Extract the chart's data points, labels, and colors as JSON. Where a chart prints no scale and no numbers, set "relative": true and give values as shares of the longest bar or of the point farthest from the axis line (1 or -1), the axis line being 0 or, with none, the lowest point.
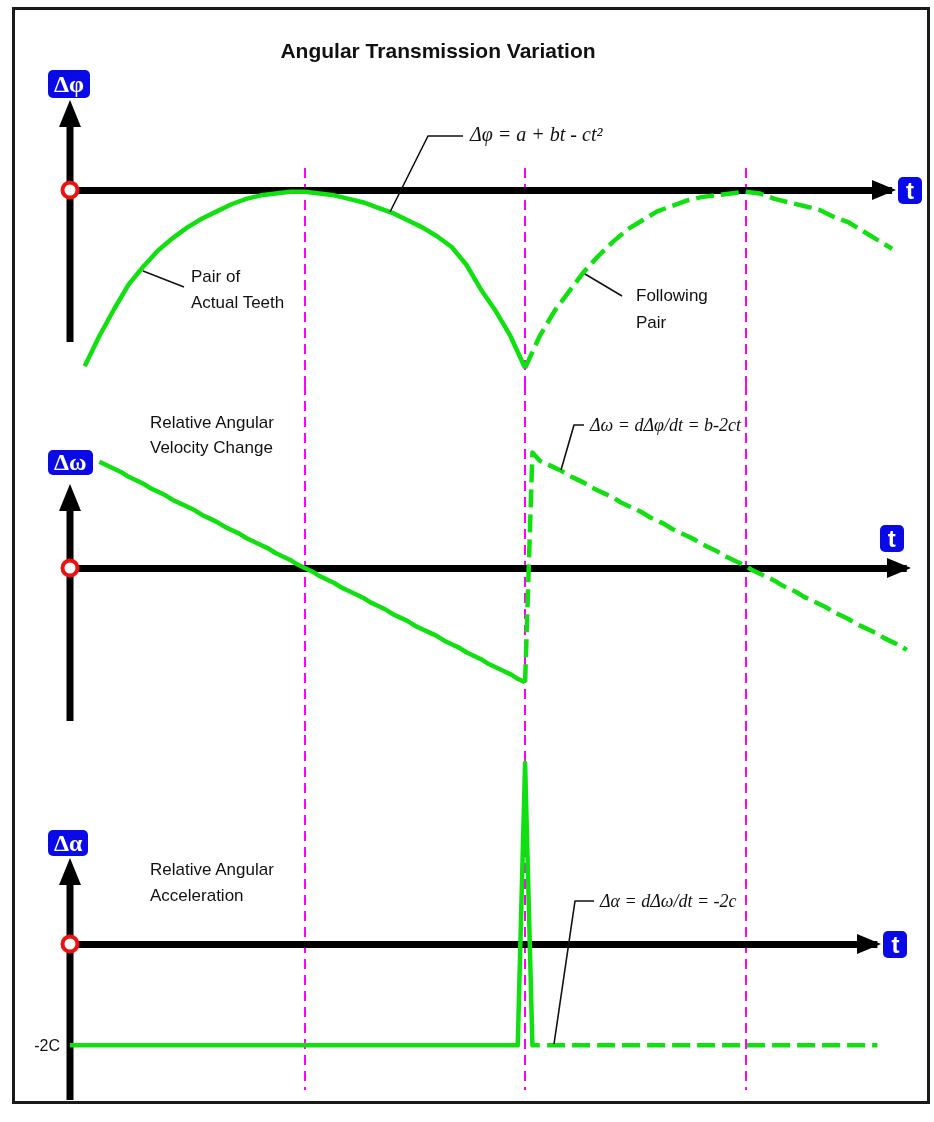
{
  "chart_data": [
    {
      "type": "line",
      "title": "Angular Transmission Variation",
      "xlabel": "t",
      "ylabel": "Δφ",
      "relative": true,
      "marker": "none",
      "tick_labels": false,
      "grid": "x",
      "categories": [
        null,
        null,
        null,
        null,
        null,
        null,
        null,
        null,
        null,
        null,
        null,
        null,
        null,
        null,
        null,
        null,
        null,
        null,
        null,
        null,
        null,
        null,
        null,
        null,
        null,
        null,
        null,
        null,
        null,
        null,
        null,
        null,
        null,
        null,
        null,
        null,
        null,
        null,
        null,
        null,
        null,
        null,
        null,
        null,
        null,
        null,
        null,
        null,
        null,
        null,
        null,
        null,
        null,
        null,
        null,
        null,
        null
      ],
      "series": [
        {
          "color": "#10e010",
          "line_style": "solid",
          "values": [
            null,
            -0.99,
            -0.82,
            -0.67,
            -0.53,
            -0.43,
            -0.34,
            -0.27,
            -0.21,
            -0.16,
            -0.12,
            -0.08,
            -0.05,
            -0.03,
            -0.02,
            -0.01,
            -0.01,
            -0.02,
            -0.03,
            -0.05,
            -0.07,
            -0.1,
            -0.13,
            -0.17,
            -0.21,
            -0.26,
            -0.32,
            -0.42,
            -0.56,
            -0.68,
            -0.82,
            -1,
            null,
            null,
            null,
            null,
            null,
            null,
            null,
            null,
            null,
            null,
            null,
            null,
            null,
            null,
            null,
            null,
            null,
            null,
            null,
            null,
            null,
            null,
            null,
            null,
            null
          ]
        },
        {
          "color": "#10e010",
          "line_style": "dashed",
          "values": [
            null,
            null,
            null,
            null,
            null,
            null,
            null,
            null,
            null,
            null,
            null,
            null,
            null,
            null,
            null,
            null,
            null,
            null,
            null,
            null,
            null,
            null,
            null,
            null,
            null,
            null,
            null,
            null,
            null,
            null,
            null,
            -1,
            -0.82,
            -0.68,
            -0.57,
            -0.46,
            -0.37,
            -0.29,
            -0.22,
            -0.17,
            -0.12,
            -0.09,
            -0.06,
            -0.04,
            -0.03,
            -0.02,
            -0.01,
            -0.02,
            -0.05,
            -0.07,
            -0.09,
            -0.11,
            -0.15,
            -0.18,
            -0.23,
            -0.28,
            -0.33
          ]
        }
      ],
      "annotations": [
        "Δφ = a + bt - ct²",
        "Pair of\nActual Teeth",
        "Following\nPair"
      ]
    },
    {
      "type": "line",
      "title": "Relative Angular\nVelocity Change",
      "xlabel": "t",
      "ylabel": "Δω",
      "relative": true,
      "marker": "none",
      "tick_labels": false,
      "grid": "x",
      "categories": [
        null,
        null,
        null,
        null,
        null,
        null,
        null,
        null,
        null,
        null,
        null,
        null,
        null,
        null,
        null,
        null,
        null,
        null,
        null,
        null,
        null,
        null,
        null,
        null,
        null,
        null,
        null,
        null,
        null,
        null,
        null,
        null,
        null,
        null,
        null,
        null,
        null,
        null,
        null,
        null,
        null,
        null,
        null,
        null,
        null,
        null,
        null,
        null,
        null,
        null,
        null,
        null,
        null,
        null,
        null,
        null,
        null,
        null,
        null,
        null,
        null,
        null,
        null,
        null,
        null,
        null,
        null,
        null,
        null,
        null,
        null,
        null,
        null,
        null,
        null,
        null,
        null,
        null,
        null,
        null,
        null,
        null,
        null,
        null,
        null,
        null,
        null,
        null,
        null,
        null,
        null,
        null,
        null,
        null,
        null,
        null,
        null,
        null,
        null,
        null,
        null,
        null,
        null,
        null,
        null,
        null,
        null,
        null,
        null,
        null,
        null,
        null,
        null,
        null,
        null
      ],
      "series": [
        {
          "color": "#10e010",
          "line_style": "solid",
          "values": [
            null,
            null,
            null,
            null,
            0.92,
            0.89,
            0.86,
            0.83,
            0.79,
            0.76,
            0.73,
            0.69,
            0.66,
            0.63,
            0.59,
            0.56,
            0.53,
            0.5,
            0.46,
            0.43,
            0.4,
            0.36,
            0.33,
            0.3,
            0.26,
            0.23,
            0.2,
            0.17,
            0.13,
            0.1,
            0.07,
            0.03,
            0,
            -0.03,
            -0.07,
            -0.1,
            -0.13,
            -0.17,
            -0.2,
            -0.23,
            -0.26,
            -0.3,
            -0.33,
            -0.36,
            -0.4,
            -0.43,
            -0.46,
            -0.5,
            -0.53,
            -0.56,
            -0.59,
            -0.63,
            -0.66,
            -0.69,
            -0.73,
            -0.76,
            -0.79,
            -0.83,
            -0.86,
            -0.89,
            -0.92,
            -0.96,
            -0.99,
            null,
            null,
            null,
            null,
            null,
            null,
            null,
            null,
            null,
            null,
            null,
            null,
            null,
            null,
            null,
            null,
            null,
            null,
            null,
            null,
            null,
            null,
            null,
            null,
            null,
            null,
            null,
            null,
            null,
            null,
            null,
            null,
            null,
            null,
            null,
            null,
            null,
            null,
            null,
            null,
            null,
            null,
            null,
            null,
            null,
            null,
            null,
            null,
            null,
            null,
            null,
            null
          ]
        },
        {
          "color": "#10e010",
          "line_style": "dashed",
          "values": [
            null,
            null,
            null,
            null,
            null,
            null,
            null,
            null,
            null,
            null,
            null,
            null,
            null,
            null,
            null,
            null,
            null,
            null,
            null,
            null,
            null,
            null,
            null,
            null,
            null,
            null,
            null,
            null,
            null,
            null,
            null,
            null,
            null,
            null,
            null,
            null,
            null,
            null,
            null,
            null,
            null,
            null,
            null,
            null,
            null,
            null,
            null,
            null,
            null,
            null,
            null,
            null,
            null,
            null,
            null,
            null,
            null,
            null,
            null,
            null,
            null,
            null,
            -0.99,
            1,
            0.93,
            0.9,
            0.87,
            0.84,
            0.8,
            0.77,
            0.74,
            0.7,
            0.67,
            0.64,
            0.61,
            0.57,
            0.54,
            0.51,
            0.48,
            0.44,
            0.41,
            0.38,
            0.34,
            0.31,
            0.28,
            0.25,
            0.21,
            0.18,
            0.15,
            0.11,
            0.08,
            0.05,
            0.02,
            -0.02,
            -0.05,
            -0.08,
            -0.11,
            -0.15,
            -0.18,
            -0.21,
            -0.25,
            -0.28,
            -0.31,
            -0.34,
            -0.38,
            -0.41,
            -0.44,
            -0.48,
            -0.51,
            -0.54,
            -0.57,
            -0.61,
            -0.64,
            -0.67,
            -0.71
          ]
        }
      ],
      "annotations": [
        "Δω = dΔφ/dt = b-2ct"
      ]
    },
    {
      "type": "line",
      "title": "Relative Angular\nAcceleration",
      "xlabel": "t",
      "ylabel": "Δα",
      "relative": true,
      "marker": "none",
      "tick_labels": false,
      "grid": "x",
      "categories": [
        null,
        null,
        null,
        null,
        null,
        null,
        null,
        null,
        null,
        null,
        null,
        null,
        null,
        null,
        null,
        null,
        null,
        null,
        null,
        null,
        null,
        null,
        null,
        null,
        null,
        null,
        null,
        null,
        null,
        null,
        null,
        null,
        null,
        null,
        null,
        null,
        null,
        null,
        null,
        null,
        null,
        null,
        null,
        null,
        null,
        null,
        null,
        null,
        null,
        null,
        null,
        null,
        null,
        null,
        null,
        null,
        null,
        null,
        null,
        null,
        null,
        null,
        null,
        null,
        null,
        null,
        null,
        null,
        null,
        null,
        null,
        null,
        null,
        null,
        null,
        null,
        null,
        null,
        null,
        null,
        null,
        null,
        null,
        null,
        null,
        null,
        null,
        null,
        null,
        null,
        null,
        null,
        null,
        null,
        null,
        null,
        null,
        null,
        null,
        null,
        null,
        null,
        null,
        null,
        null,
        null,
        null,
        null,
        null,
        null,
        null
      ],
      "series": [
        {
          "color": "#10e010",
          "line_style": "solid",
          "values": [
            -0.56,
            -0.56,
            -0.56,
            -0.56,
            -0.56,
            -0.56,
            -0.56,
            -0.56,
            -0.56,
            -0.56,
            -0.56,
            -0.56,
            -0.56,
            -0.56,
            -0.56,
            -0.56,
            -0.56,
            -0.56,
            -0.56,
            -0.56,
            -0.56,
            -0.56,
            -0.56,
            -0.56,
            -0.56,
            -0.56,
            -0.56,
            -0.56,
            -0.56,
            -0.56,
            -0.56,
            -0.56,
            -0.56,
            -0.56,
            -0.56,
            -0.56,
            -0.56,
            -0.56,
            -0.56,
            -0.56,
            -0.56,
            -0.56,
            -0.56,
            -0.56,
            -0.56,
            -0.56,
            -0.56,
            -0.56,
            -0.56,
            -0.56,
            -0.56,
            -0.56,
            -0.56,
            -0.56,
            -0.56,
            -0.56,
            -0.56,
            -0.56,
            -0.56,
            -0.56,
            -0.56,
            -0.56,
            1,
            -0.56,
            -0.56,
            null,
            null,
            null,
            null,
            null,
            null,
            null,
            null,
            null,
            null,
            null,
            null,
            null,
            null,
            null,
            null,
            null,
            null,
            null,
            null,
            null,
            null,
            null,
            null,
            null,
            null,
            null,
            null,
            null,
            null,
            null,
            null,
            null,
            null,
            null,
            null,
            null,
            null,
            null,
            null,
            null,
            null,
            null,
            null,
            null,
            null
          ]
        },
        {
          "color": "#10e010",
          "line_style": "dashed",
          "values": [
            null,
            null,
            null,
            null,
            null,
            null,
            null,
            null,
            null,
            null,
            null,
            null,
            null,
            null,
            null,
            null,
            null,
            null,
            null,
            null,
            null,
            null,
            null,
            null,
            null,
            null,
            null,
            null,
            null,
            null,
            null,
            null,
            null,
            null,
            null,
            null,
            null,
            null,
            null,
            null,
            null,
            null,
            null,
            null,
            null,
            null,
            null,
            null,
            null,
            null,
            null,
            null,
            null,
            null,
            null,
            null,
            null,
            null,
            null,
            null,
            null,
            null,
            null,
            null,
            null,
            -0.56,
            -0.56,
            -0.56,
            -0.56,
            -0.56,
            -0.56,
            -0.56,
            -0.56,
            -0.56,
            -0.56,
            -0.56,
            -0.56,
            -0.56,
            -0.56,
            -0.56,
            -0.56,
            -0.56,
            -0.56,
            -0.56,
            -0.56,
            -0.56,
            -0.56,
            -0.56,
            -0.56,
            -0.56,
            -0.56,
            -0.56,
            -0.56,
            -0.56,
            -0.56,
            -0.56,
            -0.56,
            -0.56,
            -0.56,
            -0.56,
            -0.56,
            -0.56,
            -0.56,
            -0.56,
            -0.56,
            -0.56,
            -0.56,
            -0.56,
            -0.56,
            -0.56,
            -0.56
          ]
        }
      ],
      "annotations": [
        "Δα = dΔω/dt = -2c",
        "-2C"
      ]
    }
  ]
}
